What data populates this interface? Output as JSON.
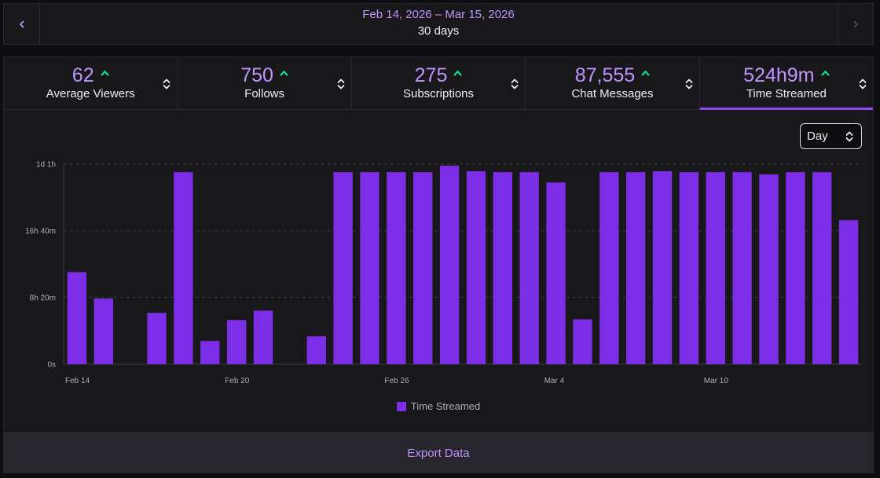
{
  "date_nav": {
    "range": "Feb 14, 2026 – Mar 15, 2026",
    "days": "30 days"
  },
  "tabs": [
    {
      "value": "62",
      "label": "Average Viewers"
    },
    {
      "value": "750",
      "label": "Follows"
    },
    {
      "value": "275",
      "label": "Subscriptions"
    },
    {
      "value": "87,555",
      "label": "Chat Messages"
    },
    {
      "value": "524h9m",
      "label": "Time Streamed"
    }
  ],
  "active_tab": "Time Streamed",
  "interval_select": {
    "value": "Day"
  },
  "colors": {
    "accent": "#bf94ff",
    "bar": "#7b2ee6",
    "trend_up": "#00f593",
    "active_underline": "#9147ff"
  },
  "chart_data": {
    "type": "bar",
    "title": "",
    "xlabel": "",
    "ylabel": "",
    "ylim": [
      0,
      25
    ],
    "unit": "hours",
    "y_ticks": [
      {
        "value": 0,
        "label": "0s"
      },
      {
        "value": 8.333,
        "label": "8h 20m"
      },
      {
        "value": 16.667,
        "label": "16h 40m"
      },
      {
        "value": 25,
        "label": "1d 1h"
      }
    ],
    "x_ticks": [
      {
        "index": 0,
        "label": "Feb 14"
      },
      {
        "index": 6,
        "label": "Feb 20"
      },
      {
        "index": 12,
        "label": "Feb 26"
      },
      {
        "index": 18,
        "label": "Mar 4"
      },
      {
        "index": 24,
        "label": "Mar 10"
      }
    ],
    "series": [
      {
        "name": "Time Streamed",
        "values": [
          11.5,
          8.2,
          0,
          6.4,
          24.0,
          2.9,
          5.5,
          6.7,
          0,
          3.5,
          24.0,
          24.0,
          24.0,
          24.0,
          24.8,
          24.1,
          24.0,
          24.0,
          22.7,
          5.6,
          24.0,
          24.0,
          24.1,
          24.0,
          24.0,
          24.0,
          23.7,
          24.0,
          24.0,
          18.0
        ]
      }
    ]
  },
  "legend": {
    "label": "Time Streamed"
  },
  "footer": {
    "export_label": "Export Data"
  }
}
